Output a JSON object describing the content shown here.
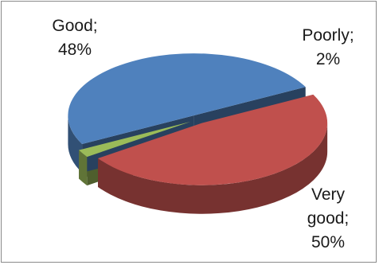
{
  "chart_data": {
    "type": "pie",
    "title": "",
    "slices": [
      {
        "label": "Very good",
        "value": 50,
        "display": "Very\ngood;\n50%",
        "color": "#4f81bd"
      },
      {
        "label": "Good",
        "value": 48,
        "display": "Good;\n48%",
        "color": "#c0504d"
      },
      {
        "label": "Poorly",
        "value": 2,
        "display": "Poorly;\n2%",
        "color": "#9bbb59"
      }
    ],
    "three_d": true,
    "exploded": true,
    "legend": "none"
  }
}
